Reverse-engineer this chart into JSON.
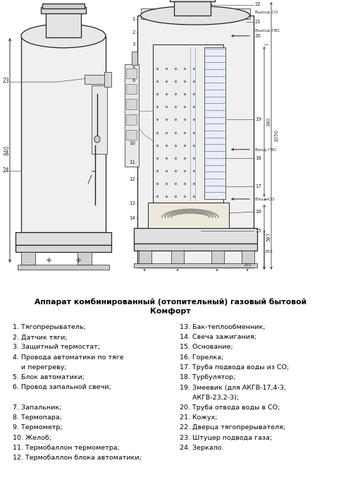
{
  "title_line1": "Аппарат комбинированный (отопительный) газовый бытовой",
  "title_line2": "Комфорт",
  "bg_color": "#ffffff",
  "text_color": "#000000",
  "dark_color": "#1a1a1a",
  "legend_left": [
    "1. Тягопрерыватель;",
    "2. Датчик тяги;",
    "3. Защитный термостат;",
    "4. Провода автоматики по тяге",
    "    и перегреву;",
    "5. Блок автоматики;",
    "6. Провод запальной свечи;",
    "",
    "7. Запальник;",
    "8. Термопара;",
    "9. Термометр;",
    "10. Желоб;",
    "11. Термобаллон термометра;",
    "12. Термобаллон блока автоматики;"
  ],
  "legend_right": [
    "13. Бак-теплообменник;",
    "14. Свеча зажигания;",
    "15. Основание;",
    "16. Горелка;",
    "17. Труба подвода воды из СО;",
    "18. Турбулятор;",
    "19. Змеевик (для АКГВ-17,4-3,",
    "      АКГВ-23,2-3);",
    "20. Труба отвода воды в СО;",
    "21. Кожух;",
    "22. Дверца тягопрерывателя;",
    "23. Штуцер подвода газа;",
    "24. Зеркало."
  ],
  "dim_color": "#333333",
  "line_color": "#222222",
  "fill_light": "#f2f2f2",
  "fill_mid": "#e0e0e0",
  "fill_dark": "#c8c8c8",
  "fill_stripe": "#d8d8d8"
}
